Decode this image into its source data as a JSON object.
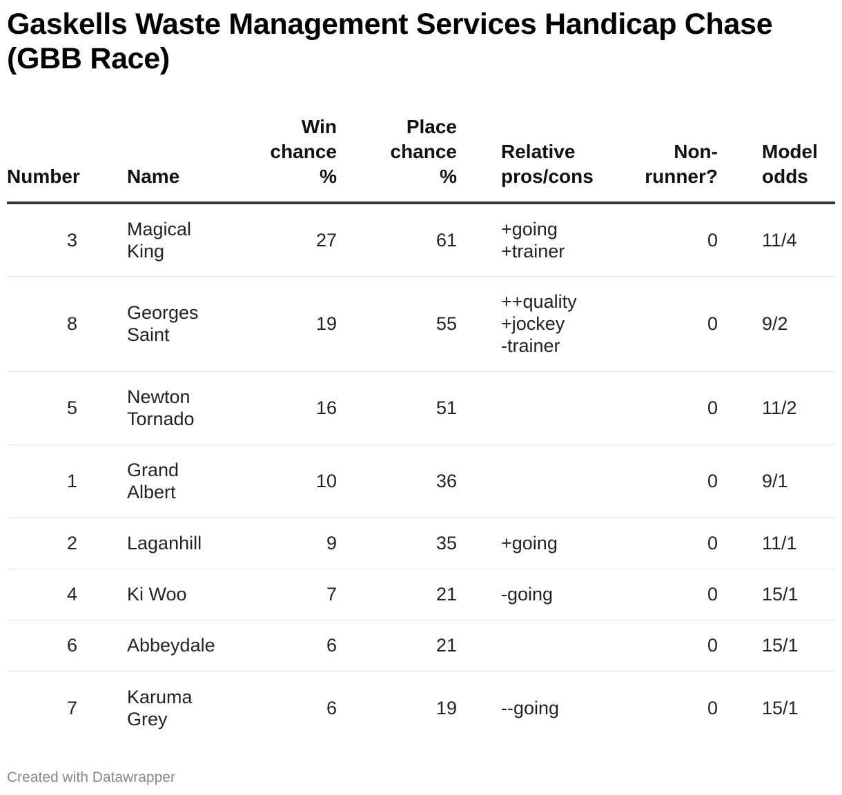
{
  "title": "Gaskells Waste Management Services Handicap Chase (GBB Race)",
  "columns": {
    "number": "Number",
    "name": "Name",
    "win": "Win\nchance\n%",
    "place": "Place\nchance\n%",
    "pros": "Relative\npros/cons",
    "nonrunner": "Non-\nrunner?",
    "odds": "Model\nodds"
  },
  "rows": [
    {
      "number": "3",
      "name": "Magical\nKing",
      "win": "27",
      "place": "61",
      "pros": "+going\n+trainer",
      "nonrunner": "0",
      "odds": "11/4"
    },
    {
      "number": "8",
      "name": "Georges\nSaint",
      "win": "19",
      "place": "55",
      "pros": "++quality\n+jockey\n-trainer",
      "nonrunner": "0",
      "odds": "9/2"
    },
    {
      "number": "5",
      "name": "Newton\nTornado",
      "win": "16",
      "place": "51",
      "pros": "",
      "nonrunner": "0",
      "odds": "11/2"
    },
    {
      "number": "1",
      "name": "Grand\nAlbert",
      "win": "10",
      "place": "36",
      "pros": "",
      "nonrunner": "0",
      "odds": "9/1"
    },
    {
      "number": "2",
      "name": "Laganhill",
      "win": "9",
      "place": "35",
      "pros": "+going",
      "nonrunner": "0",
      "odds": "11/1"
    },
    {
      "number": "4",
      "name": "Ki Woo",
      "win": "7",
      "place": "21",
      "pros": "-going",
      "nonrunner": "0",
      "odds": "15/1"
    },
    {
      "number": "6",
      "name": "Abbeydale",
      "win": "6",
      "place": "21",
      "pros": "",
      "nonrunner": "0",
      "odds": "15/1"
    },
    {
      "number": "7",
      "name": "Karuma\nGrey",
      "win": "6",
      "place": "19",
      "pros": "--going",
      "nonrunner": "0",
      "odds": "15/1"
    }
  ],
  "footer": "Created with Datawrapper",
  "chart_data": {
    "type": "table",
    "title": "Gaskells Waste Management Services Handicap Chase (GBB Race)",
    "columns": [
      "Number",
      "Name",
      "Win chance %",
      "Place chance %",
      "Relative pros/cons",
      "Non-runner?",
      "Model odds"
    ],
    "rows": [
      [
        3,
        "Magical King",
        27,
        61,
        "+going +trainer",
        0,
        "11/4"
      ],
      [
        8,
        "Georges Saint",
        19,
        55,
        "++quality +jockey -trainer",
        0,
        "9/2"
      ],
      [
        5,
        "Newton Tornado",
        16,
        51,
        "",
        0,
        "11/2"
      ],
      [
        1,
        "Grand Albert",
        10,
        36,
        "",
        0,
        "9/1"
      ],
      [
        2,
        "Laganhill",
        9,
        35,
        "+going",
        0,
        "11/1"
      ],
      [
        4,
        "Ki Woo",
        7,
        21,
        "-going",
        0,
        "15/1"
      ],
      [
        6,
        "Abbeydale",
        6,
        21,
        "",
        0,
        "15/1"
      ],
      [
        7,
        "Karuma Grey",
        6,
        19,
        "--going",
        0,
        "15/1"
      ]
    ]
  }
}
